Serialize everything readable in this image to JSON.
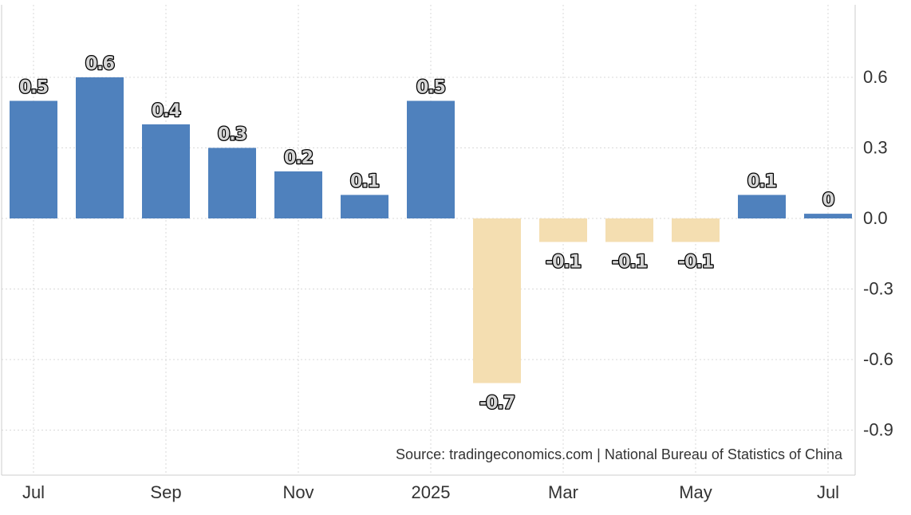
{
  "chart_data": {
    "type": "bar",
    "categories": [
      "2024-07",
      "2024-08",
      "2024-09",
      "2024-10",
      "2024-11",
      "2024-12",
      "2025-01",
      "2025-02",
      "2025-03",
      "2025-04",
      "2025-05",
      "2025-06",
      "2025-07"
    ],
    "values": [
      0.5,
      0.6,
      0.4,
      0.3,
      0.2,
      0.1,
      0.5,
      -0.7,
      -0.1,
      -0.1,
      -0.1,
      0.1,
      0.02
    ],
    "data_labels": [
      "0.5",
      "0.6",
      "0.4",
      "0.3",
      "0.2",
      "0.1",
      "0.5",
      "-0.7",
      "-0.1",
      "-0.1",
      "-0.1",
      "0.1",
      "0"
    ],
    "x_tick_labels": [
      "Jul",
      "Sep",
      "Nov",
      "2025",
      "Mar",
      "May",
      "Jul"
    ],
    "x_tick_indices": [
      0,
      2,
      4,
      6,
      8,
      10,
      12
    ],
    "y_ticks": [
      0.6,
      0.3,
      0.0,
      -0.3,
      -0.6,
      -0.9
    ],
    "y_tick_labels": [
      "0.6",
      "0.3",
      "0.0",
      "-0.3",
      "-0.6",
      "-0.9"
    ],
    "ylim": [
      -1.1,
      0.9
    ],
    "y_axis_side": "right",
    "grid": true,
    "legend": false,
    "title": "",
    "xlabel": "",
    "ylabel": "",
    "colors": {
      "positive": "#4f81bd",
      "negative": "#f4deb1",
      "grid": "#d9d9d9",
      "axis": "#cccccc"
    }
  },
  "source_note": "Source: tradingeconomics.com | National Bureau of Statistics of China"
}
